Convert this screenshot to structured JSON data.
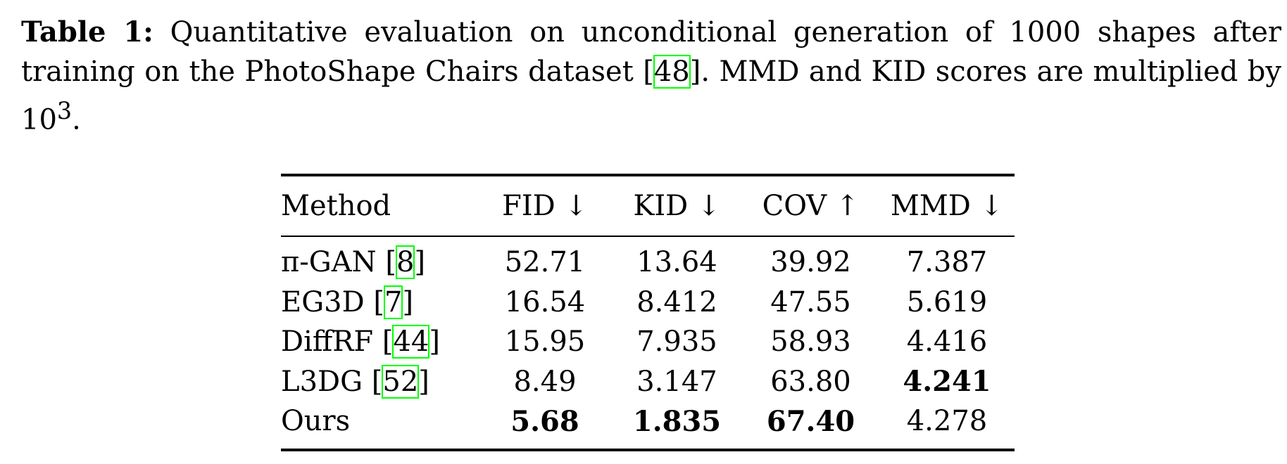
{
  "caption": {
    "label": "Table 1:",
    "text_before_cite": "Quantitative evaluation on unconditional generation of 1000 shapes after training on the PhotoShape Chairs dataset [",
    "cite": "48",
    "text_after_cite": "]. MMD and KID scores are multiplied by 10",
    "exponent": "3",
    "end": "."
  },
  "table": {
    "headers": [
      "Method",
      "FID ↓",
      "KID ↓",
      "COV ↑",
      "MMD ↓"
    ],
    "rows": [
      {
        "method": "π-GAN",
        "cite": "8",
        "fid": "52.71",
        "kid": "13.64",
        "cov": "39.92",
        "mmd": "7.387"
      },
      {
        "method": "EG3D",
        "cite": "7",
        "fid": "16.54",
        "kid": "8.412",
        "cov": "47.55",
        "mmd": "5.619"
      },
      {
        "method": "DiffRF",
        "cite": "44",
        "fid": "15.95",
        "kid": "7.935",
        "cov": "58.93",
        "mmd": "4.416"
      },
      {
        "method": "L3DG",
        "cite": "52",
        "fid": "8.49",
        "kid": "3.147",
        "cov": "63.80",
        "mmd": "4.241"
      },
      {
        "method": "Ours",
        "cite": "",
        "fid": "5.68",
        "kid": "1.835",
        "cov": "67.40",
        "mmd": "4.278"
      }
    ],
    "bold_cells": [
      "3.mmd",
      "4.fid",
      "4.kid",
      "4.cov"
    ]
  },
  "colors": {
    "citation_box": "#00ff00",
    "text": "#000000"
  }
}
